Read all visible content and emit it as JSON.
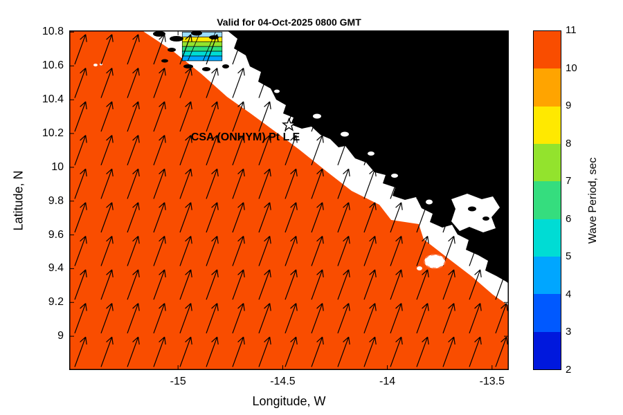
{
  "chart_data": {
    "type": "heatmap",
    "title": "Valid for 04-Oct-2025 0800 GMT",
    "xlabel": "Longitude, W",
    "ylabel": "Latitude, N",
    "xlim": [
      -15.52,
      -13.42
    ],
    "ylim": [
      8.8,
      10.81
    ],
    "x_ticks": [
      -15,
      -14.5,
      -14,
      -13.5
    ],
    "y_ticks": [
      9,
      9.2,
      9.4,
      9.6,
      9.8,
      10,
      10.2,
      10.4,
      10.6,
      10.8
    ],
    "field": "wave period",
    "units": "sec",
    "sea_color": "#f94d00",
    "sea_value_range_sec": [
      10,
      11
    ],
    "land_color": "#000000",
    "colorbar": {
      "label": "Wave Period, sec",
      "min": 2,
      "max": 11,
      "ticks": [
        2,
        3,
        4,
        5,
        6,
        7,
        8,
        9,
        10,
        11
      ],
      "band_colors_low_to_high": [
        "#0018dd",
        "#0059ff",
        "#00a6ff",
        "#00dcd4",
        "#35dd7e",
        "#93e32d",
        "#ffe900",
        "#ffa400",
        "#f94d00"
      ]
    },
    "station": {
      "label": "CSA (ONHYM) Pt L E",
      "lon": -14.47,
      "lat": 10.25,
      "marker": "white star"
    },
    "arrows": {
      "meaning": "wave direction",
      "bearing_deg_from_north": 20,
      "coverage": "uniform grid over sea and coastal strip"
    },
    "anomaly_patch": {
      "lon_range": [
        -14.98,
        -14.79
      ],
      "lat_range": [
        10.63,
        10.8
      ],
      "value_range_sec": [
        4,
        9
      ],
      "stripe_colors_top_to_bottom": [
        "#9adcff",
        "#ffe900",
        "#93e32d",
        "#2edd7c",
        "#00dcd4",
        "#00a6ff"
      ]
    }
  }
}
